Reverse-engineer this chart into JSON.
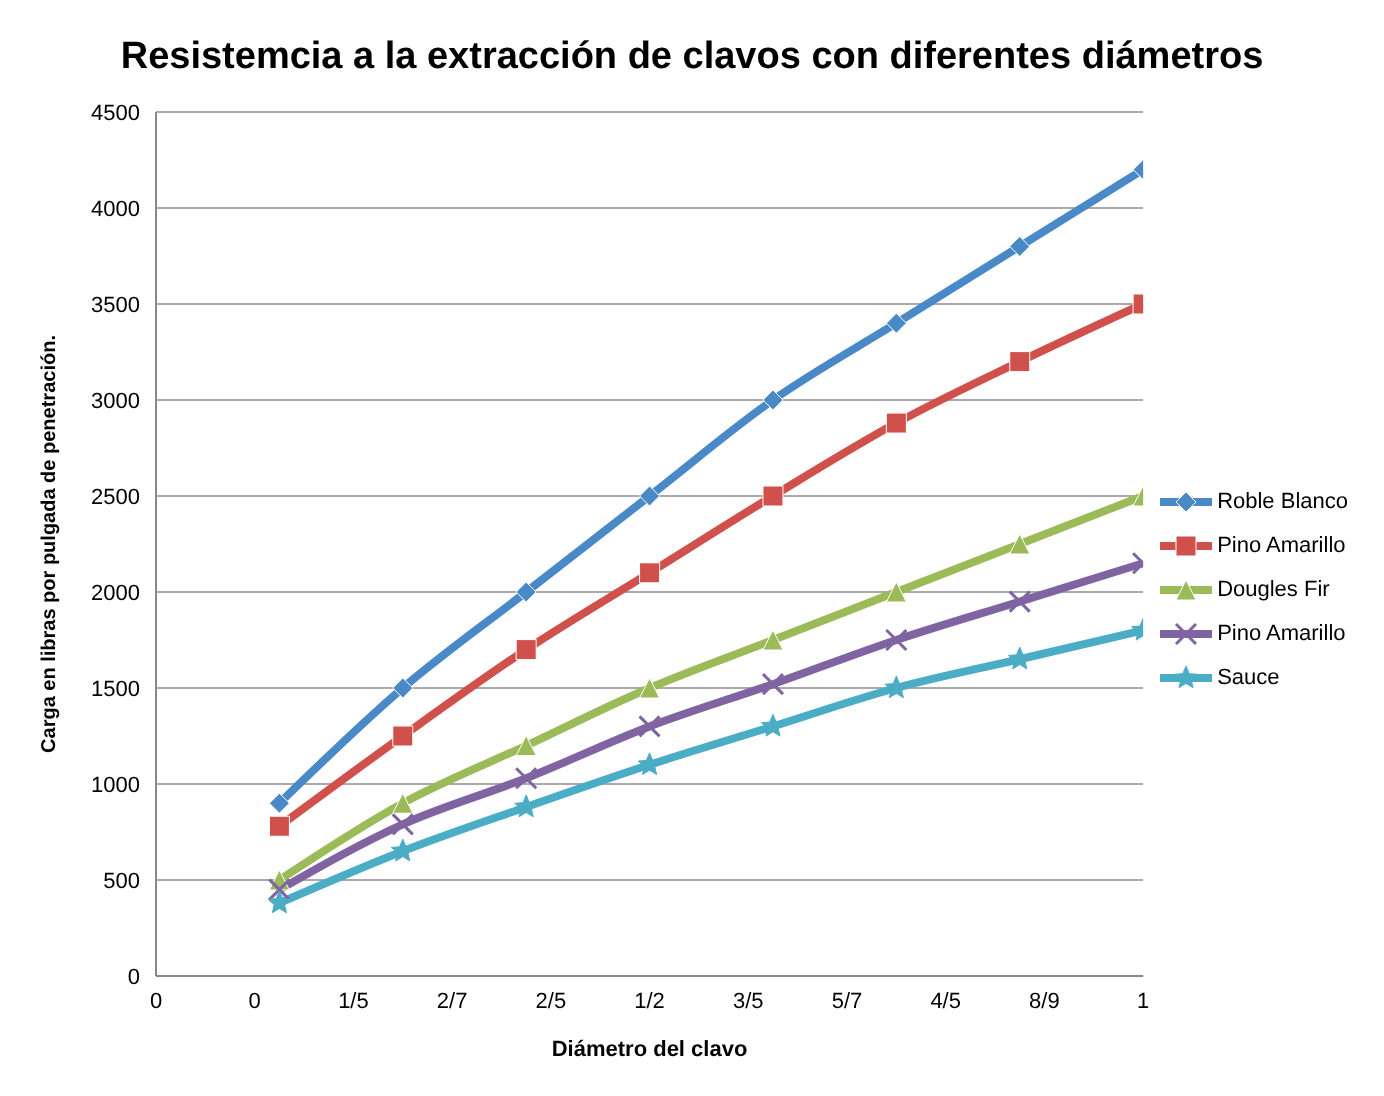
{
  "chart_data": {
    "type": "line",
    "title": "Resistemcia a la extracción de clavos con diferentes diámetros",
    "xlabel": "Diámetro del clavo",
    "ylabel": "Carga en  libras por pulgada de penetración.",
    "x": [
      0.125,
      0.25,
      0.375,
      0.5,
      0.625,
      0.75,
      0.875,
      1
    ],
    "series": [
      {
        "name": "Roble Blanco",
        "color": "#4a89c8",
        "marker": "diamond",
        "values": [
          900,
          1500,
          2000,
          2500,
          3000,
          3400,
          3800,
          4200
        ]
      },
      {
        "name": "Pino Amarillo",
        "color": "#d0504b",
        "marker": "square",
        "values": [
          780,
          1250,
          1700,
          2100,
          2500,
          2880,
          3200,
          3500
        ]
      },
      {
        "name": "Dougles Fir",
        "color": "#9bbb59",
        "marker": "triangle",
        "values": [
          500,
          900,
          1200,
          1500,
          1750,
          2000,
          2250,
          2500
        ]
      },
      {
        "name": "Pino Amarillo",
        "color": "#8064a2",
        "marker": "cross",
        "values": [
          450,
          790,
          1030,
          1300,
          1520,
          1750,
          1950,
          2150
        ]
      },
      {
        "name": "Sauce",
        "color": "#4bacc6",
        "marker": "star",
        "values": [
          380,
          650,
          880,
          1100,
          1300,
          1500,
          1650,
          1800
        ]
      }
    ],
    "xlim": [
      0,
      1
    ],
    "xticks": [
      0,
      {
        "value": 0.1,
        "label": "0"
      },
      {
        "value": 0.2,
        "label": "1/5"
      },
      {
        "value": 0.3,
        "label": "2/7"
      },
      {
        "value": 0.4,
        "label": "2/5"
      },
      {
        "value": 0.5,
        "label": "1/2"
      },
      {
        "value": 0.6,
        "label": "3/5"
      },
      {
        "value": 0.7,
        "label": "5/7"
      },
      {
        "value": 0.8,
        "label": "4/5"
      },
      {
        "value": 0.9,
        "label": "8/9"
      },
      1
    ],
    "ylim": [
      0,
      4500
    ],
    "yticks": [
      0,
      500,
      1000,
      1500,
      2000,
      2500,
      3000,
      3500,
      4000,
      4500
    ],
    "grid": "y",
    "legend": "right",
    "line_style": "solid"
  }
}
